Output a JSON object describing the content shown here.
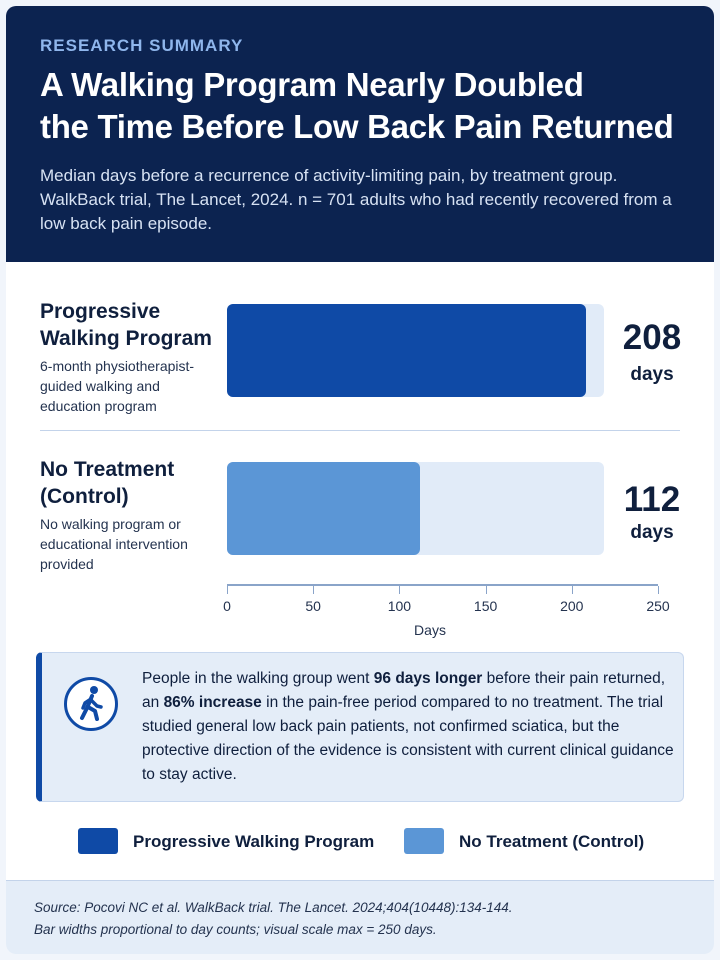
{
  "header": {
    "eyebrow": "RESEARCH SUMMARY",
    "title_line1": "A Walking Program Nearly Doubled",
    "title_line2": "the Time Before Low Back Pain Returned",
    "subtitle": "Median days before a recurrence of activity-limiting pain, by treatment group. WalkBack trial, The Lancet, 2024. n = 701 adults who had recently recovered from a low back pain episode."
  },
  "groups": [
    {
      "name": "Progressive Walking Program",
      "description": "6-month physiotherapist-guided walking and education program",
      "value_label": "208",
      "unit": "days"
    },
    {
      "name": "No Treatment (Control)",
      "description": "No walking program or educational intervention provided",
      "value_label": "112",
      "unit": "days"
    }
  ],
  "chart_data": {
    "type": "bar",
    "orientation": "horizontal",
    "categories": [
      "Progressive Walking Program",
      "No Treatment (Control)"
    ],
    "values": [
      208,
      112
    ],
    "xlabel": "Days",
    "xlim": [
      0,
      250
    ],
    "xticks": [
      0,
      50,
      100,
      150,
      200,
      250
    ],
    "colors": [
      "#0f4aa6",
      "#5b96d6"
    ],
    "track_color": "#e1ebf8",
    "legend": [
      "Progressive Walking Program",
      "No Treatment (Control)"
    ],
    "legend_position": "bottom"
  },
  "note": {
    "icon": "walking-person-icon",
    "t1": "People in the walking group went ",
    "b1": "96 days longer",
    "t2": " before their pain returned, an ",
    "b2": "86% increase",
    "t3": " in the pain-free period compared to no treatment. The trial studied general low back pain patients, not confirmed sciatica, but the protective direction of the evidence is consistent with current clinical guidance to stay active."
  },
  "footer": {
    "source": "Source:  Pocovi NC et al. WalkBack trial. The Lancet. 2024;404(10448):134-144.",
    "scale_note": "Bar widths proportional to day counts; visual scale max = 250 days."
  },
  "colors": {
    "header_bg": "#0c2350",
    "accent": "#0f4aa6",
    "control": "#5b96d6"
  }
}
